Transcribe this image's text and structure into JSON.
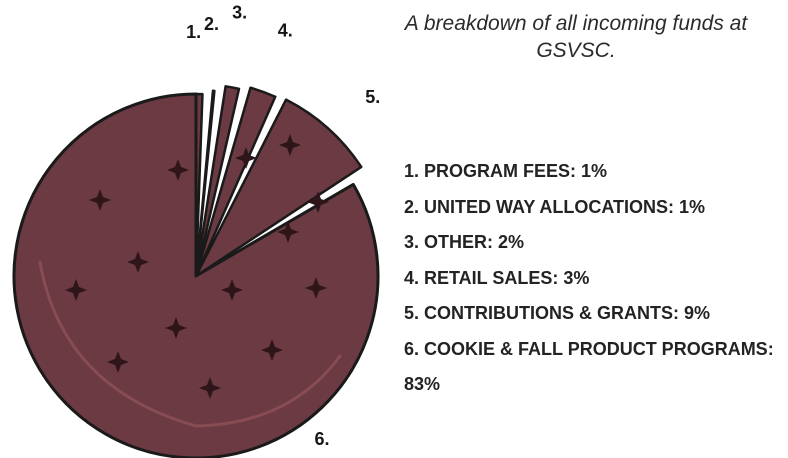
{
  "subtitle": "A breakdown of all incoming funds at GSVSC.",
  "colors": {
    "slice_fill": "#6c3a42",
    "outline": "#1a1a1a",
    "crumb": "#2e1519",
    "shine": "#93545d",
    "background": "#ffffff"
  },
  "chart_data": {
    "type": "pie",
    "style": "cookie-pie with exploded slices",
    "title": "",
    "subtitle": "A breakdown of all incoming funds at GSVSC.",
    "slices": [
      {
        "number": "1.",
        "label": "PROGRAM FEES",
        "value": 1,
        "text": "1. PROGRAM FEES: 1%"
      },
      {
        "number": "2.",
        "label": "UNITED WAY ALLOCATIONS",
        "value": 1,
        "text": "2. UNITED WAY ALLOCATIONS: 1%"
      },
      {
        "number": "3.",
        "label": "OTHER",
        "value": 2,
        "text": "3. OTHER: 2%"
      },
      {
        "number": "4.",
        "label": "RETAIL SALES",
        "value": 3,
        "text": "4. RETAIL SALES: 3%"
      },
      {
        "number": "5.",
        "label": "CONTRIBUTIONS & GRANTS",
        "value": 9,
        "text": "5. CONTRIBUTIONS & GRANTS: 9%"
      },
      {
        "number": "6.",
        "label": "COOKIE & FALL PRODUCT PROGRAMS",
        "value": 83,
        "text": "6. COOKIE & FALL PRODUCT PROGRAMS: 83%"
      }
    ],
    "unit": "%",
    "legend_position": "right"
  }
}
